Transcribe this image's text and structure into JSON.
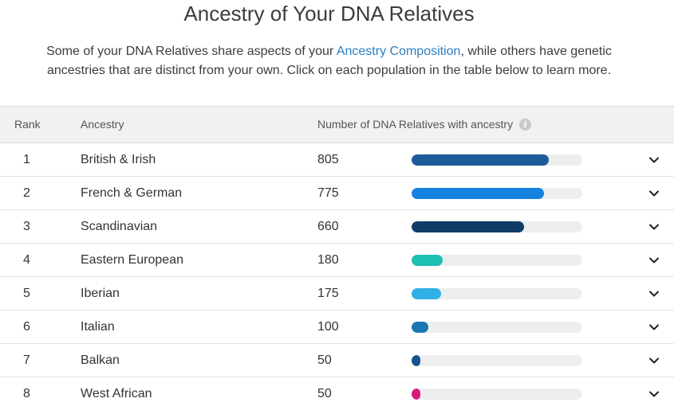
{
  "header": {
    "title": "Ancestry of Your DNA Relatives",
    "intro_before": "Some of your DNA Relatives share aspects of your ",
    "intro_link": "Ancestry Composition",
    "intro_after": ", while others have genetic ancestries that are distinct from your own. Click on each population in the table below to learn more."
  },
  "table": {
    "columns": {
      "rank": "Rank",
      "ancestry": "Ancestry",
      "count": "Number of DNA Relatives with ancestry"
    },
    "max_value": 1000,
    "rows": [
      {
        "rank": "1",
        "ancestry": "British & Irish",
        "count": "805",
        "value": 805,
        "color": "#1d5a99"
      },
      {
        "rank": "2",
        "ancestry": "French & German",
        "count": "775",
        "value": 775,
        "color": "#1482e0"
      },
      {
        "rank": "3",
        "ancestry": "Scandinavian",
        "count": "660",
        "value": 660,
        "color": "#0e3c66"
      },
      {
        "rank": "4",
        "ancestry": "Eastern European",
        "count": "180",
        "value": 180,
        "color": "#1cbfb4"
      },
      {
        "rank": "5",
        "ancestry": "Iberian",
        "count": "175",
        "value": 175,
        "color": "#2fb0e6"
      },
      {
        "rank": "6",
        "ancestry": "Italian",
        "count": "100",
        "value": 100,
        "color": "#1a77b3"
      },
      {
        "rank": "7",
        "ancestry": "Balkan",
        "count": "50",
        "value": 50,
        "color": "#15528a"
      },
      {
        "rank": "8",
        "ancestry": "West African",
        "count": "50",
        "value": 50,
        "color": "#d81b7c"
      }
    ]
  },
  "icons": {
    "info": "info-icon",
    "expand": "chevron-down-icon"
  }
}
